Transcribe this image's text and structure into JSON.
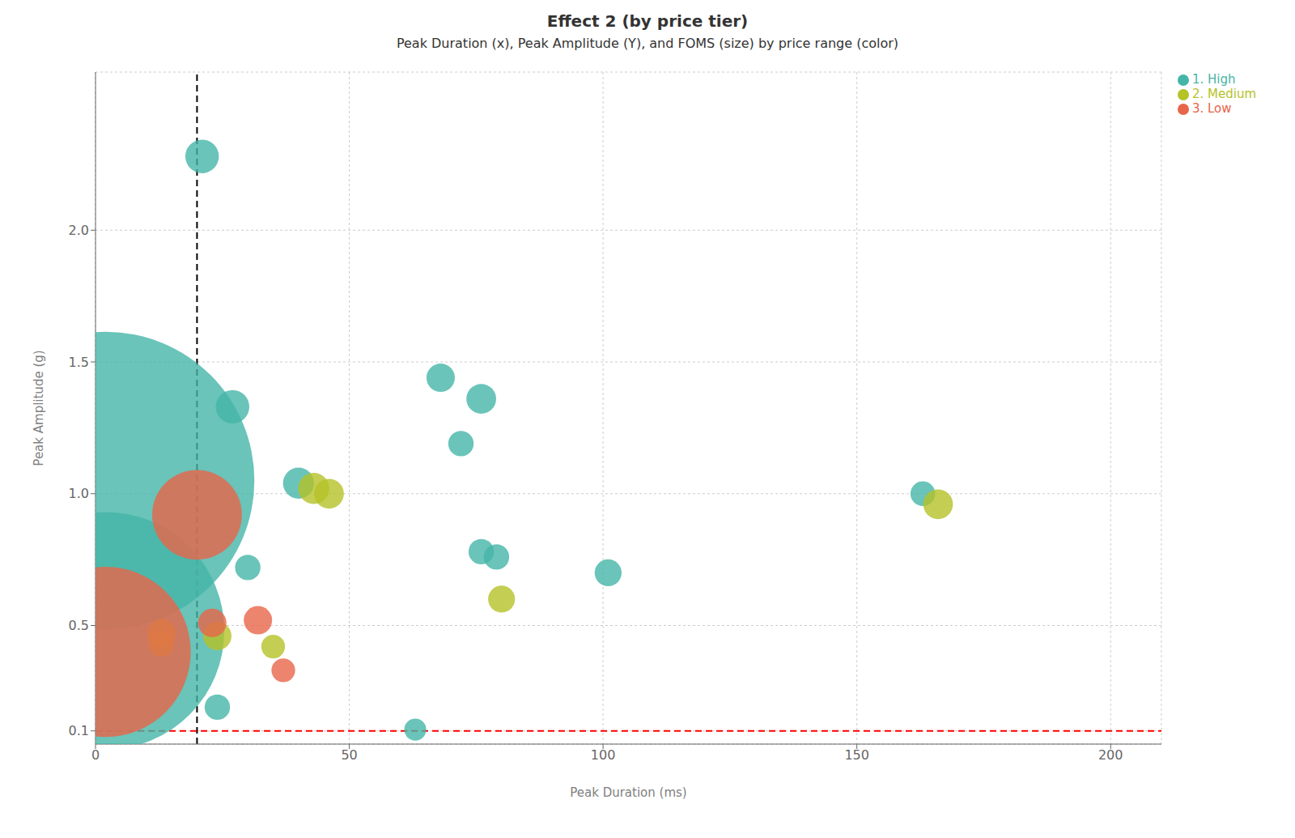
{
  "chart_data": {
    "type": "scatter",
    "title": "Effect 2 (by price tier)",
    "subtitle": "Peak Duration (x), Peak Amplitude (Y), and FOMS (size) by price range (color)",
    "x_label": "Peak Duration (ms)",
    "y_label": "Peak Amplitude (g)",
    "xlim": [
      0,
      210
    ],
    "xticks": [
      0,
      50,
      100,
      150,
      200
    ],
    "ylim": [
      0.05,
      2.6
    ],
    "yticks": [
      0.1,
      0.5,
      {
        "value": 1,
        "label": "1.0"
      },
      1.5,
      {
        "value": 2,
        "label": "2.0"
      }
    ],
    "grid": true,
    "legend": "upper right",
    "marker": "circle",
    "reference_lines": [
      {
        "axis": "x",
        "value": 20,
        "color": "#000000",
        "line_style": "dashed"
      },
      {
        "axis": "y",
        "value": 0.1,
        "color": "#ff0000",
        "line_style": "dashed"
      }
    ],
    "series": [
      {
        "name": "1. High",
        "color": "#45b5a8",
        "x": [
          2,
          2,
          21,
          24,
          27,
          30,
          40,
          63,
          68,
          76,
          72,
          76,
          79,
          101,
          163
        ],
        "values": [
          1.05,
          0.48,
          2.28,
          0.19,
          1.33,
          0.72,
          1.04,
          0.105,
          1.44,
          1.36,
          1.19,
          0.78,
          0.76,
          0.7,
          1.0
        ],
        "size": [
          55000,
          35000,
          700,
          400,
          700,
          400,
          600,
          300,
          500,
          550,
          400,
          400,
          400,
          450,
          380
        ]
      },
      {
        "name": "2. Medium",
        "color": "#b5c228",
        "x": [
          13,
          13,
          24,
          35,
          43,
          46,
          80,
          166
        ],
        "values": [
          0.47,
          0.43,
          0.46,
          0.42,
          1.02,
          1.0,
          0.6,
          0.96
        ],
        "size": [
          500,
          400,
          500,
          350,
          600,
          550,
          450,
          550
        ]
      },
      {
        "name": "3. Low",
        "color": "#e8654a",
        "x": [
          2,
          20,
          23,
          32,
          37
        ],
        "values": [
          0.4,
          0.92,
          0.51,
          0.52,
          0.33
        ],
        "size": [
          18000,
          5000,
          500,
          500,
          350
        ]
      }
    ]
  }
}
